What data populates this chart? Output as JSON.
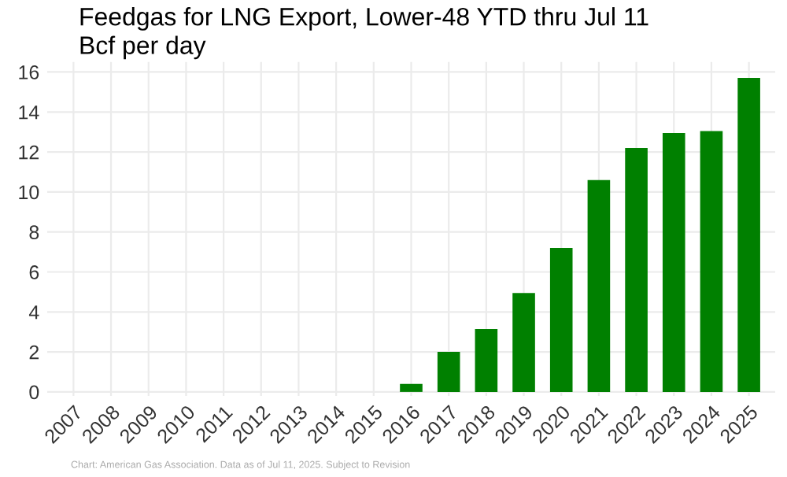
{
  "chart_data": {
    "type": "bar",
    "title": "Feedgas for LNG Export, Lower-48 YTD thru Jul 11",
    "subtitle": "Bcf per day",
    "categories": [
      "2007",
      "2008",
      "2009",
      "2010",
      "2011",
      "2012",
      "2013",
      "2014",
      "2015",
      "2016",
      "2017",
      "2018",
      "2019",
      "2020",
      "2021",
      "2022",
      "2023",
      "2024",
      "2025"
    ],
    "values": [
      0,
      0,
      0,
      0,
      0,
      0,
      0,
      0,
      0,
      0.4,
      2.0,
      3.15,
      4.95,
      7.2,
      10.6,
      12.2,
      12.95,
      13.05,
      15.7
    ],
    "color": "#008000",
    "ylim": [
      -0.2,
      16.5
    ],
    "yticks": [
      0,
      2,
      4,
      6,
      8,
      10,
      12,
      14,
      16
    ],
    "grid": true,
    "annotations": [
      "Chart: American Gas Association. Data as of Jul 11, 2025. Subject to Revision"
    ]
  }
}
